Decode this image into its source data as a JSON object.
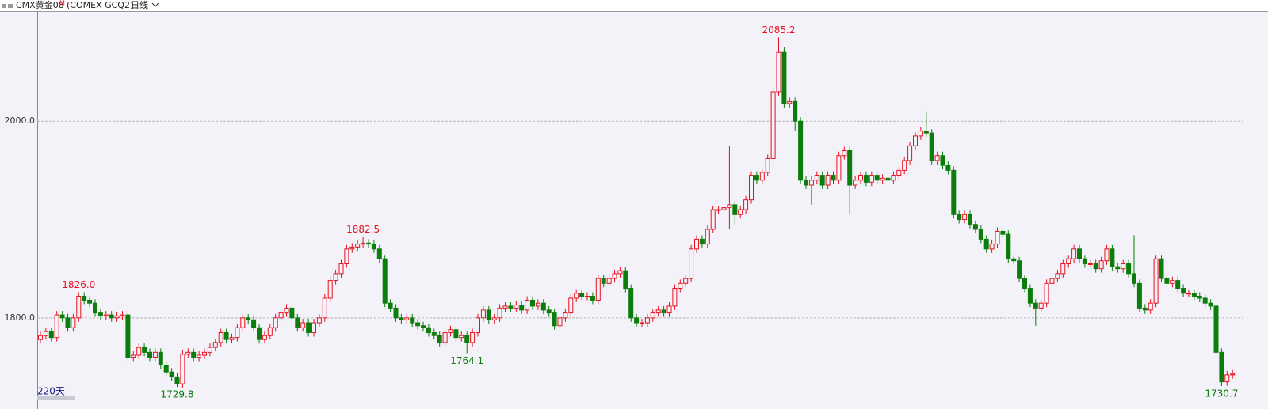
{
  "chart_data": {
    "type": "candlestick",
    "title": "CMX黄金08",
    "title_sup": "M",
    "subtitle": "(COMEX GCQ2)",
    "period": "日线",
    "footer": "220天",
    "ylim": [
      1717,
      2112
    ],
    "yticks": [
      {
        "value": 1800,
        "label": "1800.0"
      },
      {
        "value": 2000,
        "label": "2000.0"
      }
    ],
    "grid": true,
    "up_color": "#e8101e",
    "down_color": "#0a7d0a",
    "open": [
      1778,
      1782,
      1786,
      1780,
      1803,
      1800,
      1790,
      1800,
      1822,
      1818,
      1815,
      1805,
      1802,
      1803,
      1800,
      1802,
      1803,
      1760,
      1762,
      1770,
      1765,
      1760,
      1765,
      1752,
      1745,
      1740,
      1733,
      1763,
      1765,
      1760,
      1762,
      1765,
      1770,
      1775,
      1785,
      1778,
      1780,
      1790,
      1800,
      1798,
      1790,
      1778,
      1782,
      1790,
      1800,
      1805,
      1810,
      1800,
      1790,
      1795,
      1785,
      1795,
      1800,
      1820,
      1838,
      1845,
      1855,
      1870,
      1872,
      1875,
      1876,
      1875,
      1870,
      1860,
      1815,
      1810,
      1800,
      1798,
      1800,
      1795,
      1792,
      1790,
      1785,
      1782,
      1775,
      1785,
      1788,
      1780,
      1782,
      1775,
      1785,
      1800,
      1808,
      1798,
      1800,
      1810,
      1812,
      1810,
      1813,
      1808,
      1818,
      1812,
      1815,
      1808,
      1805,
      1792,
      1800,
      1805,
      1820,
      1825,
      1822,
      1822,
      1818,
      1840,
      1835,
      1840,
      1845,
      1848,
      1830,
      1800,
      1795,
      1795,
      1800,
      1805,
      1808,
      1805,
      1812,
      1830,
      1835,
      1840,
      1870,
      1880,
      1875,
      1890,
      1910,
      1910,
      1912,
      1915,
      1905,
      1910,
      1920,
      1945,
      1940,
      1948,
      1962,
      2030,
      2070,
      2018,
      2020,
      2000,
      1940,
      1935,
      1940,
      1945,
      1935,
      1945,
      1940,
      1965,
      1970,
      1935,
      1940,
      1945,
      1938,
      1945,
      1940,
      1942,
      1940,
      1945,
      1950,
      1960,
      1975,
      1985,
      1990,
      1988,
      1960,
      1965,
      1955,
      1950,
      1905,
      1900,
      1905,
      1895,
      1890,
      1880,
      1870,
      1875,
      1888,
      1885,
      1860,
      1858,
      1840,
      1830,
      1815,
      1810,
      1815,
      1835,
      1840,
      1845,
      1855,
      1860,
      1870,
      1860,
      1855,
      1855,
      1850,
      1858,
      1870,
      1852,
      1850,
      1855,
      1845,
      1835,
      1810,
      1808,
      1815,
      1860,
      1840,
      1835,
      1838,
      1830,
      1825,
      1825,
      1822,
      1820,
      1815,
      1812,
      1765,
      1735,
      1742
    ],
    "high": [
      1786,
      1790,
      1790,
      1807,
      1807,
      1804,
      1804,
      1826,
      1826,
      1822,
      1819,
      1809,
      1807,
      1807,
      1806,
      1807,
      1807,
      1766,
      1774,
      1774,
      1769,
      1769,
      1769,
      1756,
      1749,
      1744,
      1767,
      1769,
      1769,
      1766,
      1769,
      1774,
      1779,
      1789,
      1789,
      1784,
      1794,
      1804,
      1804,
      1802,
      1794,
      1786,
      1794,
      1804,
      1809,
      1814,
      1814,
      1804,
      1799,
      1799,
      1799,
      1804,
      1824,
      1842,
      1849,
      1859,
      1874,
      1876,
      1879,
      1882.5,
      1880,
      1879,
      1874,
      1864,
      1819,
      1814,
      1804,
      1804,
      1804,
      1799,
      1796,
      1794,
      1789,
      1786,
      1789,
      1792,
      1792,
      1786,
      1786,
      1789,
      1804,
      1812,
      1812,
      1804,
      1814,
      1816,
      1816,
      1817,
      1817,
      1822,
      1822,
      1819,
      1819,
      1812,
      1809,
      1804,
      1809,
      1824,
      1829,
      1829,
      1826,
      1826,
      1844,
      1844,
      1844,
      1849,
      1852,
      1852,
      1834,
      1804,
      1799,
      1804,
      1809,
      1812,
      1812,
      1816,
      1834,
      1839,
      1844,
      1874,
      1884,
      1884,
      1894,
      1914,
      1914,
      1916,
      1975,
      1919,
      1914,
      1924,
      1949,
      1949,
      1952,
      1966,
      2034,
      2085.2,
      2075,
      2024,
      2024,
      2004,
      1944,
      1944,
      1949,
      1949,
      1949,
      1949,
      1969,
      1974,
      1974,
      1944,
      1949,
      1949,
      1949,
      1949,
      1946,
      1946,
      1949,
      1954,
      1964,
      1979,
      1989,
      1994,
      2010,
      1992,
      1969,
      1969,
      1959,
      1954,
      1909,
      1909,
      1909,
      1899,
      1894,
      1884,
      1879,
      1892,
      1892,
      1889,
      1864,
      1862,
      1844,
      1834,
      1819,
      1819,
      1839,
      1844,
      1849,
      1859,
      1864,
      1874,
      1874,
      1864,
      1859,
      1859,
      1862,
      1874,
      1874,
      1856,
      1859,
      1859,
      1884,
      1839,
      1814,
      1819,
      1864,
      1864,
      1844,
      1842,
      1842,
      1834,
      1829,
      1829,
      1826,
      1824,
      1819,
      1816,
      1769,
      1746,
      1747
    ],
    "low": [
      1774,
      1778,
      1776,
      1776,
      1796,
      1786,
      1786,
      1796,
      1814,
      1811,
      1801,
      1798,
      1798,
      1796,
      1796,
      1798,
      1756,
      1756,
      1758,
      1761,
      1756,
      1756,
      1748,
      1741,
      1736,
      1729.8,
      1729,
      1759,
      1756,
      1756,
      1758,
      1761,
      1766,
      1771,
      1774,
      1774,
      1776,
      1786,
      1794,
      1786,
      1774,
      1774,
      1778,
      1786,
      1796,
      1801,
      1796,
      1786,
      1786,
      1781,
      1781,
      1791,
      1796,
      1816,
      1834,
      1841,
      1851,
      1866,
      1868,
      1871,
      1871,
      1866,
      1856,
      1811,
      1806,
      1796,
      1794,
      1794,
      1791,
      1788,
      1786,
      1781,
      1778,
      1771,
      1771,
      1781,
      1776,
      1776,
      1764.1,
      1771,
      1781,
      1796,
      1794,
      1794,
      1796,
      1806,
      1806,
      1806,
      1804,
      1804,
      1808,
      1808,
      1804,
      1801,
      1788,
      1788,
      1796,
      1801,
      1816,
      1818,
      1818,
      1814,
      1814,
      1831,
      1831,
      1836,
      1841,
      1826,
      1796,
      1791,
      1791,
      1791,
      1796,
      1801,
      1801,
      1801,
      1808,
      1826,
      1831,
      1836,
      1866,
      1871,
      1871,
      1886,
      1906,
      1906,
      1890,
      1895,
      1901,
      1906,
      1916,
      1936,
      1936,
      1944,
      1958,
      2026,
      2014,
      2014,
      1990,
      1936,
      1931,
      1915,
      1936,
      1931,
      1931,
      1936,
      1936,
      1961,
      1905,
      1931,
      1936,
      1934,
      1934,
      1936,
      1936,
      1936,
      1936,
      1941,
      1946,
      1956,
      1971,
      1981,
      1984,
      1956,
      1956,
      1951,
      1946,
      1901,
      1896,
      1896,
      1891,
      1886,
      1876,
      1866,
      1866,
      1871,
      1881,
      1856,
      1854,
      1836,
      1826,
      1811,
      1792,
      1806,
      1811,
      1831,
      1836,
      1841,
      1851,
      1856,
      1856,
      1851,
      1851,
      1846,
      1846,
      1854,
      1848,
      1846,
      1846,
      1841,
      1831,
      1806,
      1804,
      1804,
      1811,
      1836,
      1831,
      1831,
      1826,
      1821,
      1821,
      1818,
      1816,
      1811,
      1808,
      1761,
      1730.7,
      1731,
      1738
    ],
    "close": [
      1782,
      1786,
      1780,
      1803,
      1800,
      1790,
      1800,
      1822,
      1818,
      1815,
      1805,
      1802,
      1803,
      1800,
      1802,
      1803,
      1760,
      1762,
      1770,
      1765,
      1760,
      1765,
      1752,
      1745,
      1740,
      1733,
      1763,
      1765,
      1760,
      1762,
      1765,
      1770,
      1775,
      1785,
      1778,
      1780,
      1790,
      1800,
      1798,
      1790,
      1778,
      1782,
      1790,
      1800,
      1805,
      1810,
      1800,
      1790,
      1795,
      1785,
      1795,
      1800,
      1820,
      1838,
      1845,
      1855,
      1870,
      1872,
      1875,
      1876,
      1875,
      1870,
      1860,
      1815,
      1810,
      1800,
      1798,
      1800,
      1795,
      1792,
      1790,
      1785,
      1782,
      1775,
      1785,
      1788,
      1780,
      1782,
      1775,
      1785,
      1800,
      1808,
      1798,
      1800,
      1810,
      1812,
      1810,
      1813,
      1808,
      1818,
      1812,
      1815,
      1808,
      1805,
      1792,
      1800,
      1805,
      1820,
      1825,
      1822,
      1822,
      1818,
      1840,
      1835,
      1840,
      1845,
      1848,
      1830,
      1800,
      1795,
      1795,
      1800,
      1805,
      1808,
      1805,
      1812,
      1830,
      1835,
      1840,
      1870,
      1880,
      1875,
      1890,
      1910,
      1910,
      1912,
      1915,
      1905,
      1910,
      1920,
      1945,
      1940,
      1948,
      1962,
      2030,
      2070,
      2018,
      2020,
      2000,
      1940,
      1935,
      1940,
      1945,
      1935,
      1945,
      1940,
      1965,
      1970,
      1935,
      1940,
      1945,
      1938,
      1945,
      1940,
      1942,
      1940,
      1945,
      1950,
      1960,
      1975,
      1985,
      1990,
      1988,
      1960,
      1965,
      1955,
      1950,
      1905,
      1900,
      1905,
      1895,
      1890,
      1880,
      1870,
      1875,
      1888,
      1885,
      1860,
      1858,
      1840,
      1830,
      1815,
      1810,
      1815,
      1835,
      1840,
      1845,
      1855,
      1860,
      1870,
      1860,
      1855,
      1855,
      1850,
      1858,
      1870,
      1852,
      1850,
      1855,
      1845,
      1835,
      1810,
      1808,
      1815,
      1860,
      1840,
      1835,
      1838,
      1830,
      1825,
      1825,
      1822,
      1820,
      1815,
      1812,
      1765,
      1735,
      1742,
      1743
    ],
    "annotations": [
      {
        "label": "1826.0",
        "value": 1826
      },
      {
        "label": "1882.5",
        "value": 1882.5
      },
      {
        "label": "2085.2",
        "value": 2085.2
      },
      {
        "label": "1729.8",
        "value": 1729.8
      },
      {
        "label": "1764.1",
        "value": 1764.1
      },
      {
        "label": "1730.7",
        "value": 1730.7
      }
    ]
  }
}
